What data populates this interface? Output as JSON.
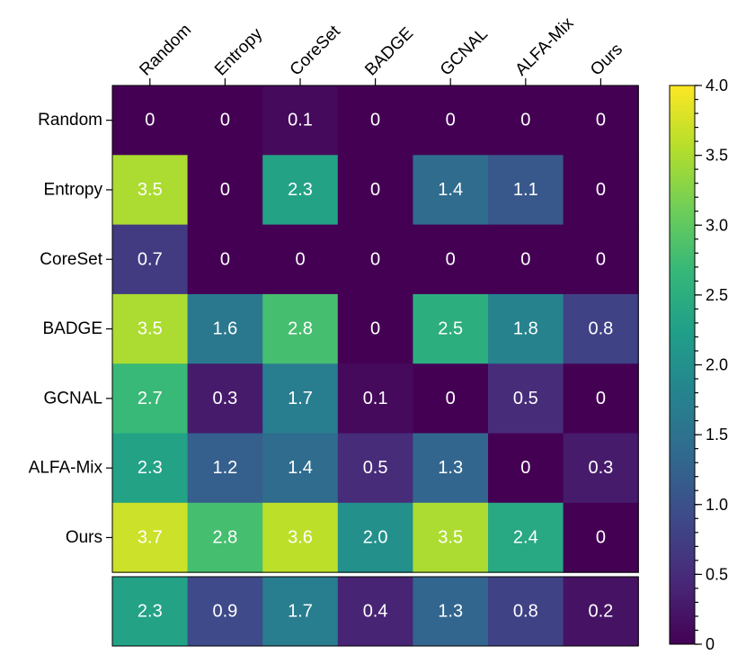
{
  "chart_data": {
    "type": "heatmap",
    "rows": [
      "Random",
      "Entropy",
      "CoreSet",
      "BADGE",
      "GCNAL",
      "ALFA-Mix",
      "Ours"
    ],
    "columns": [
      "Random",
      "Entropy",
      "CoreSet",
      "BADGE",
      "GCNAL",
      "ALFA-Mix",
      "Ours"
    ],
    "values": [
      [
        0,
        0,
        0.1,
        0,
        0,
        0,
        0
      ],
      [
        3.5,
        0,
        2.3,
        0,
        1.4,
        1.1,
        0
      ],
      [
        0.7,
        0,
        0,
        0,
        0,
        0,
        0
      ],
      [
        3.5,
        1.6,
        2.8,
        0,
        2.5,
        1.8,
        0.8
      ],
      [
        2.7,
        0.3,
        1.7,
        0.1,
        0,
        0.5,
        0
      ],
      [
        2.3,
        1.2,
        1.4,
        0.5,
        1.3,
        0,
        0.3
      ],
      [
        3.7,
        2.8,
        3.6,
        2.0,
        3.5,
        2.4,
        0
      ]
    ],
    "value_labels": [
      [
        "0",
        "0",
        "0.1",
        "0",
        "0",
        "0",
        "0"
      ],
      [
        "3.5",
        "0",
        "2.3",
        "0",
        "1.4",
        "1.1",
        "0"
      ],
      [
        "0.7",
        "0",
        "0",
        "0",
        "0",
        "0",
        "0"
      ],
      [
        "3.5",
        "1.6",
        "2.8",
        "0",
        "2.5",
        "1.8",
        "0.8"
      ],
      [
        "2.7",
        "0.3",
        "1.7",
        "0.1",
        "0",
        "0.5",
        "0"
      ],
      [
        "2.3",
        "1.2",
        "1.4",
        "0.5",
        "1.3",
        "0",
        "0.3"
      ],
      [
        "3.7",
        "2.8",
        "3.6",
        "2.0",
        "3.5",
        "2.4",
        "0"
      ]
    ],
    "summary_values": [
      2.3,
      0.9,
      1.7,
      0.4,
      1.3,
      0.8,
      0.2
    ],
    "summary_labels": [
      "2.3",
      "0.9",
      "1.7",
      "0.4",
      "1.3",
      "0.8",
      "0.2"
    ],
    "colorbar": {
      "colormap": "viridis",
      "range": [
        0,
        4.0
      ],
      "ticks": [
        0,
        0.5,
        1.0,
        1.5,
        2.0,
        2.5,
        3.0,
        3.5,
        4.0
      ],
      "tick_labels": [
        "0",
        "0.5",
        "1.0",
        "1.5",
        "2.0",
        "2.5",
        "3.0",
        "3.5",
        "4.0"
      ],
      "minor_step": 0.1
    },
    "title": "",
    "xlabel": "",
    "ylabel": ""
  }
}
